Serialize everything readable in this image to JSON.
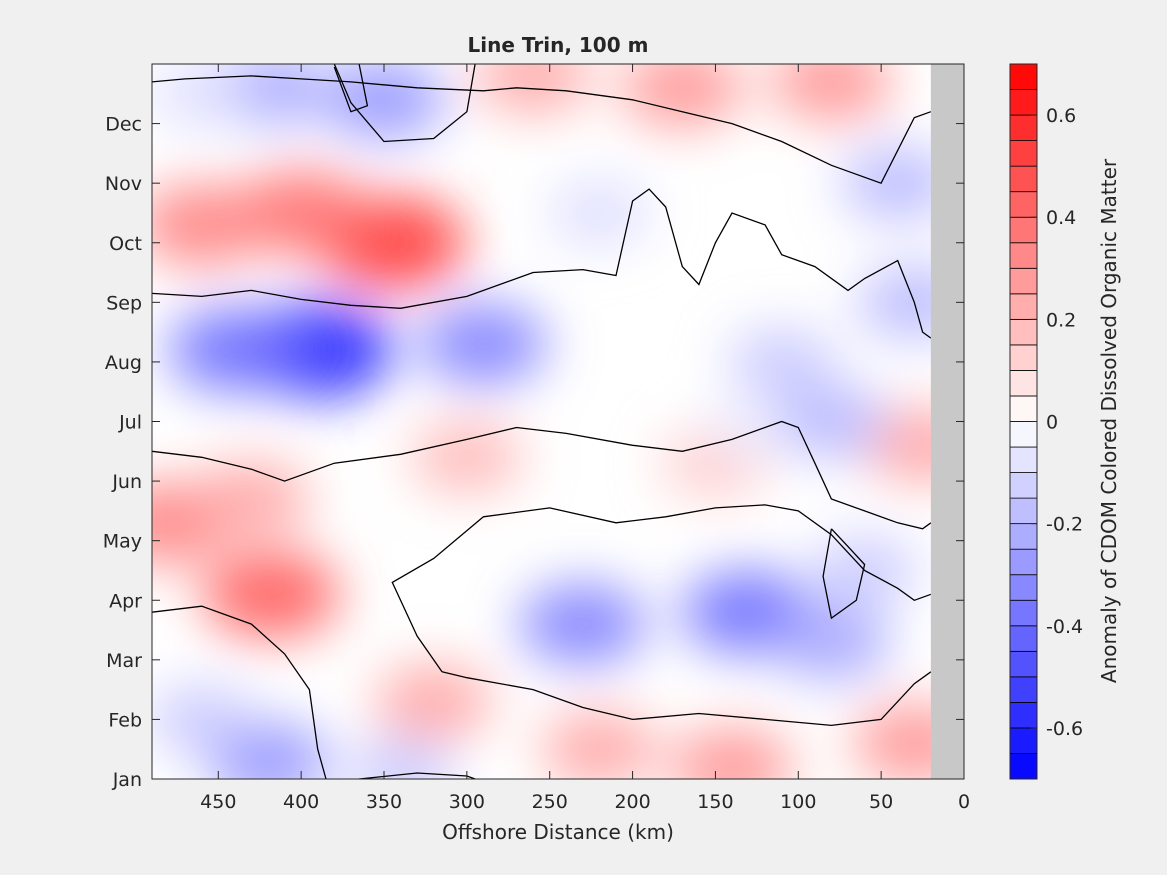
{
  "chart_data": {
    "type": "heatmap",
    "subtype": "filled-contour",
    "title": "Line Trin, 100 m",
    "xlabel": "Offshore Distance (km)",
    "ylabel": "",
    "x_direction": "reversed",
    "xlim": [
      0,
      490
    ],
    "x_ticks": [
      450,
      400,
      350,
      300,
      250,
      200,
      150,
      100,
      50,
      0
    ],
    "x_tick_labels": [
      "450",
      "400",
      "350",
      "300",
      "250",
      "200",
      "150",
      "100",
      "50",
      "0"
    ],
    "y_categories": [
      "Jan",
      "Feb",
      "Mar",
      "Apr",
      "May",
      "Jun",
      "Jul",
      "Aug",
      "Sep",
      "Oct",
      "Nov",
      "Dec"
    ],
    "y_month_positions": [
      1,
      2,
      3,
      4,
      5,
      6,
      7,
      8,
      9,
      10,
      11,
      12
    ],
    "ylim": [
      1,
      13
    ],
    "no_data_x_range": [
      0,
      20
    ],
    "no_data_color": "#c8c8c8",
    "zero_contour_color": "#000000",
    "colorbar": {
      "label": "Anomaly of CDOM Colored Dissolved Organic Matter",
      "limits": [
        -0.7,
        0.7
      ],
      "step": 0.05,
      "tick_values": [
        -0.6,
        -0.4,
        -0.2,
        0,
        0.2,
        0.4,
        0.6
      ],
      "tick_labels": [
        "-0.6",
        "-0.4",
        "-0.2",
        "0",
        "0.2",
        "0.4",
        "0.6"
      ],
      "negative_color": "#0000ff",
      "positive_color": "#ff0000",
      "zero_color": "#ffffff"
    },
    "anomaly_features": [
      {
        "x": 390,
        "month": 8.2,
        "value": -0.6
      },
      {
        "x": 290,
        "month": 8.3,
        "value": -0.35
      },
      {
        "x": 440,
        "month": 8.2,
        "value": -0.4
      },
      {
        "x": 345,
        "month": 10,
        "value": 0.55
      },
      {
        "x": 400,
        "month": 10.5,
        "value": 0.4
      },
      {
        "x": 460,
        "month": 10.3,
        "value": 0.35
      },
      {
        "x": 230,
        "month": 3.6,
        "value": -0.35
      },
      {
        "x": 130,
        "month": 3.8,
        "value": -0.4
      },
      {
        "x": 80,
        "month": 3.3,
        "value": -0.25
      },
      {
        "x": 418,
        "month": 4.1,
        "value": 0.45
      },
      {
        "x": 480,
        "month": 5.3,
        "value": 0.35
      },
      {
        "x": 430,
        "month": 5.7,
        "value": 0.25
      },
      {
        "x": 320,
        "month": 2.3,
        "value": 0.25
      },
      {
        "x": 220,
        "month": 1.5,
        "value": 0.25
      },
      {
        "x": 140,
        "month": 1.2,
        "value": 0.3
      },
      {
        "x": 30,
        "month": 1.6,
        "value": 0.3
      },
      {
        "x": 260,
        "month": 12.8,
        "value": 0.25
      },
      {
        "x": 170,
        "month": 12.6,
        "value": 0.3
      },
      {
        "x": 80,
        "month": 12.7,
        "value": 0.3
      },
      {
        "x": 350,
        "month": 12.4,
        "value": -0.3
      },
      {
        "x": 420,
        "month": 12.6,
        "value": -0.25
      },
      {
        "x": 460,
        "month": 12.5,
        "value": -0.1
      },
      {
        "x": 25,
        "month": 6.6,
        "value": 0.25
      },
      {
        "x": 300,
        "month": 6.4,
        "value": 0.2
      },
      {
        "x": 150,
        "month": 6.3,
        "value": 0.15
      },
      {
        "x": 30,
        "month": 9,
        "value": -0.2
      },
      {
        "x": 110,
        "month": 8,
        "value": -0.15
      },
      {
        "x": 40,
        "month": 11,
        "value": -0.2
      },
      {
        "x": 60,
        "month": 4.5,
        "value": -0.15
      },
      {
        "x": 420,
        "month": 1.3,
        "value": -0.3
      },
      {
        "x": 460,
        "month": 2,
        "value": -0.15
      },
      {
        "x": 340,
        "month": 1.1,
        "value": -0.15
      },
      {
        "x": 130,
        "month": 6.9,
        "value": -0.05
      },
      {
        "x": 80,
        "month": 7,
        "value": -0.2
      },
      {
        "x": 220,
        "month": 10.5,
        "value": -0.1
      }
    ]
  }
}
